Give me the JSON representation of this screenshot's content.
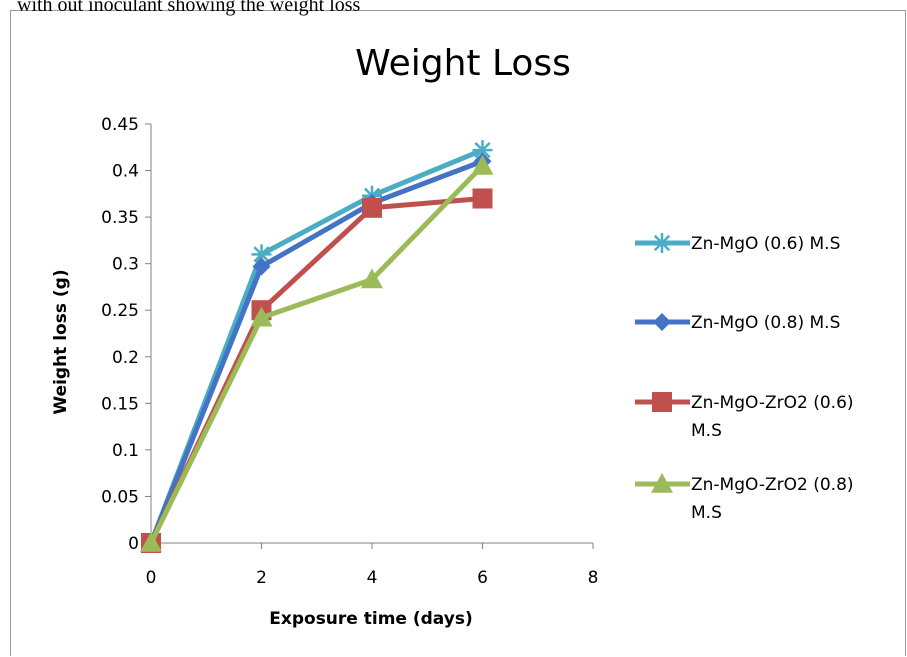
{
  "top_caption": "with out inoculant showing the weight loss",
  "chart_data": {
    "type": "line",
    "title": "Weight Loss",
    "xlabel": "Exposure time (days)",
    "ylabel": "Weight loss (g)",
    "xlim": [
      0,
      8
    ],
    "ylim": [
      0,
      0.45
    ],
    "x_ticks": [
      "0",
      "2",
      "4",
      "6",
      "8"
    ],
    "y_ticks": [
      "0",
      "0.05",
      "0.1",
      "0.15",
      "0.2",
      "0.25",
      "0.3",
      "0.35",
      "0.4",
      "0.45"
    ],
    "grid": false,
    "legend_position": "right",
    "x": [
      0,
      2,
      4,
      6
    ],
    "series": [
      {
        "name": "Zn-MgO (0.6) M.S",
        "legend_lines": [
          "Zn-MgO (0.6) M.S"
        ],
        "values": [
          0,
          0.31,
          0.373,
          0.422
        ],
        "color": "#4bacc6",
        "marker": "star"
      },
      {
        "name": "Zn-MgO (0.8) M.S",
        "legend_lines": [
          "Zn-MgO (0.8) M.S"
        ],
        "values": [
          0,
          0.297,
          0.365,
          0.41
        ],
        "color": "#4472c4",
        "marker": "diamond"
      },
      {
        "name": "Zn-MgO-ZrO2 (0.6) M.S",
        "legend_lines": [
          "Zn-MgO-ZrO2 (0.6)",
          "M.S"
        ],
        "values": [
          0,
          0.25,
          0.36,
          0.37
        ],
        "color": "#c0504d",
        "marker": "square"
      },
      {
        "name": "Zn-MgO-ZrO2 (0.8) M.S",
        "legend_lines": [
          "Zn-MgO-ZrO2 (0.8)",
          "M.S"
        ],
        "values": [
          0,
          0.242,
          0.283,
          0.405
        ],
        "color": "#9bbb59",
        "marker": "triangle"
      }
    ]
  }
}
